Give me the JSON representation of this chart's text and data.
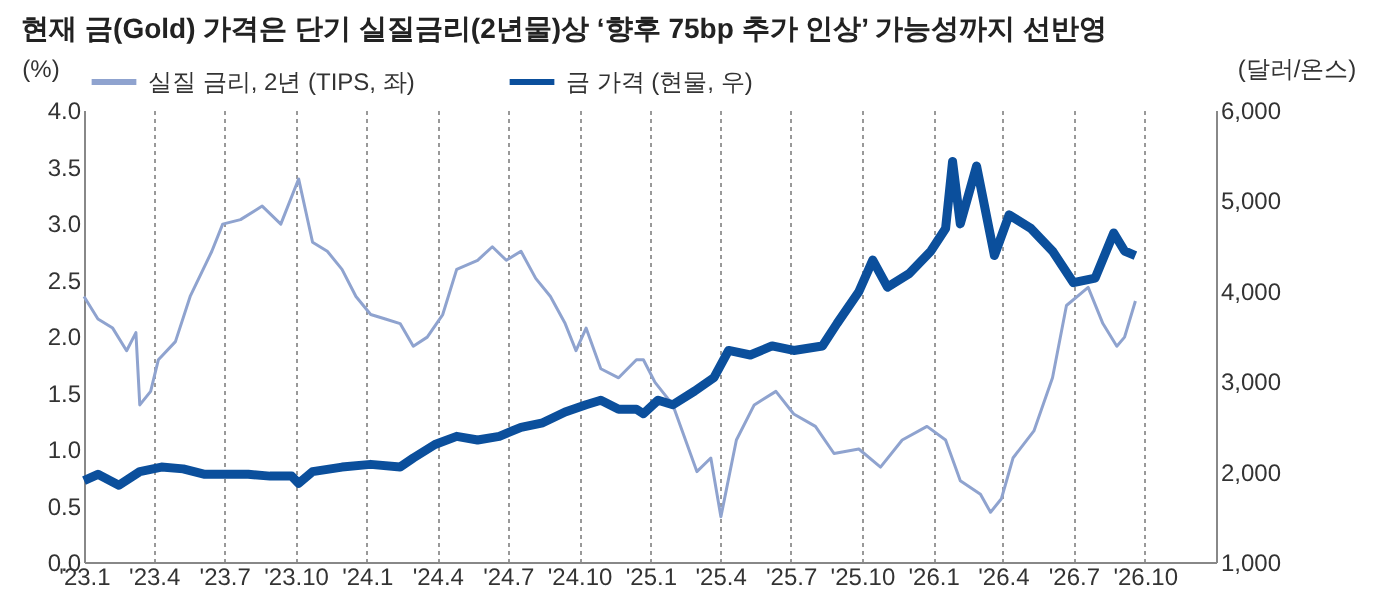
{
  "chart_data": {
    "type": "line",
    "title": "현재 금(Gold) 가격은 단기 실질금리(2년물)상 ‘향후 75bp 추가 인상’ 가능성까지 선반영",
    "ylabel": "(%)",
    "y2label": "(달러/온스)",
    "grid": "x",
    "legend": "top",
    "marker": "none",
    "line_style": "solid",
    "xlim": [
      "2023-01-01",
      "2027-01-01"
    ],
    "xticks": [
      {
        "value": "2023-01-01",
        "label": "'23.1"
      },
      {
        "value": "2023-04-01",
        "label": "'23.4"
      },
      {
        "value": "2023-07-01",
        "label": "'23.7"
      },
      {
        "value": "2023-10-01",
        "label": "'23.10"
      },
      {
        "value": "2024-01-01",
        "label": "'24.1"
      },
      {
        "value": "2024-04-01",
        "label": "'24.4"
      },
      {
        "value": "2024-07-01",
        "label": "'24.7"
      },
      {
        "value": "2024-10-01",
        "label": "'24.10"
      },
      {
        "value": "2025-01-01",
        "label": "'25.1"
      },
      {
        "value": "2025-04-01",
        "label": "'25.4"
      },
      {
        "value": "2025-07-01",
        "label": "'25.7"
      },
      {
        "value": "2025-10-01",
        "label": "'25.10"
      },
      {
        "value": "2026-01-01",
        "label": "'26.1"
      },
      {
        "value": "2026-04-01",
        "label": "'26.4"
      },
      {
        "value": "2026-07-01",
        "label": "'26.7"
      },
      {
        "value": "2026-10-01",
        "label": "'26.10"
      }
    ],
    "ylim": [
      0,
      4
    ],
    "yticks": [
      {
        "value": 0,
        "label": "0.0"
      },
      {
        "value": 0.5,
        "label": "0.5"
      },
      {
        "value": 1,
        "label": "1.0"
      },
      {
        "value": 1.5,
        "label": "1.5"
      },
      {
        "value": 2,
        "label": "2.0"
      },
      {
        "value": 2.5,
        "label": "2.5"
      },
      {
        "value": 3,
        "label": "3.0"
      },
      {
        "value": 3.5,
        "label": "3.5"
      },
      {
        "value": 4,
        "label": "4.0"
      }
    ],
    "y2lim": [
      1000,
      6000
    ],
    "y2ticks": [
      {
        "value": 1000,
        "label": "1,000"
      },
      {
        "value": 2000,
        "label": "2,000"
      },
      {
        "value": 3000,
        "label": "3,000"
      },
      {
        "value": 4000,
        "label": "4,000"
      },
      {
        "value": 5000,
        "label": "5,000"
      },
      {
        "value": 6000,
        "label": "6,000"
      }
    ],
    "series": [
      {
        "name": "실질 금리, 2년 (TIPS, 좌)",
        "color": "#8fa3cf",
        "x": [
          "2023-01-01",
          "2023-01-19",
          "2023-02-07",
          "2023-02-25",
          "2023-03-09",
          "2023-03-14",
          "2023-03-28",
          "2023-04-07",
          "2023-04-29",
          "2023-05-18",
          "2023-06-15",
          "2023-06-29",
          "2023-07-22",
          "2023-08-19",
          "2023-09-12",
          "2023-10-05",
          "2023-10-23",
          "2023-11-11",
          "2023-11-30",
          "2023-12-18",
          "2024-01-06",
          "2024-01-25",
          "2024-02-13",
          "2024-03-01",
          "2024-03-19",
          "2024-04-08",
          "2024-04-26",
          "2024-05-23",
          "2024-06-11",
          "2024-06-29",
          "2024-07-18",
          "2024-08-06",
          "2024-08-25",
          "2024-09-13",
          "2024-09-27",
          "2024-10-10",
          "2024-10-29",
          "2024-11-21",
          "2024-12-14",
          "2024-12-23",
          "2025-01-07",
          "2025-01-30",
          "2025-03-02",
          "2025-03-20",
          "2025-04-02",
          "2025-04-22",
          "2025-05-15",
          "2025-06-12",
          "2025-07-05",
          "2025-08-02",
          "2025-08-26",
          "2025-09-27",
          "2025-10-25",
          "2025-11-22",
          "2025-12-24",
          "2026-01-17",
          "2026-02-05",
          "2026-03-03",
          "2026-03-16",
          "2026-03-30",
          "2026-04-14",
          "2026-05-11",
          "2026-06-04",
          "2026-06-22",
          "2026-07-20",
          "2026-08-08",
          "2026-08-26",
          "2026-09-05",
          "2026-09-19"
        ],
        "values": [
          2.35,
          2.15,
          2.07,
          1.87,
          2.03,
          1.39,
          1.51,
          1.79,
          1.95,
          2.35,
          2.75,
          2.99,
          3.03,
          3.15,
          2.99,
          3.39,
          2.83,
          2.75,
          2.59,
          2.35,
          2.19,
          2.15,
          2.11,
          1.91,
          1.99,
          2.19,
          2.59,
          2.67,
          2.79,
          2.67,
          2.75,
          2.51,
          2.35,
          2.11,
          1.87,
          2.07,
          1.71,
          1.63,
          1.79,
          1.79,
          1.59,
          1.39,
          0.8,
          0.92,
          0.4,
          1.08,
          1.39,
          1.51,
          1.31,
          1.2,
          0.96,
          1.0,
          0.84,
          1.08,
          1.2,
          1.08,
          0.72,
          0.6,
          0.44,
          0.56,
          0.92,
          1.16,
          1.63,
          2.27,
          2.43,
          2.11,
          1.91,
          1.99,
          2.31
        ]
      },
      {
        "name": "금 가격 (현물, 우)",
        "color": "#0b4f9c",
        "axis": "y2",
        "x": [
          "2023-01-01",
          "2023-01-19",
          "2023-02-15",
          "2023-03-14",
          "2023-04-11",
          "2023-05-09",
          "2023-06-06",
          "2023-07-04",
          "2023-08-01",
          "2023-08-29",
          "2023-09-26",
          "2023-10-05",
          "2023-10-23",
          "2023-11-30",
          "2024-01-06",
          "2024-02-13",
          "2024-03-01",
          "2024-03-29",
          "2024-04-26",
          "2024-05-23",
          "2024-06-20",
          "2024-07-18",
          "2024-08-15",
          "2024-09-13",
          "2024-10-10",
          "2024-10-29",
          "2024-11-21",
          "2024-12-14",
          "2024-12-23",
          "2025-01-11",
          "2025-01-30",
          "2025-02-27",
          "2025-03-24",
          "2025-04-12",
          "2025-05-10",
          "2025-06-07",
          "2025-07-05",
          "2025-08-11",
          "2025-08-30",
          "2025-09-27",
          "2025-10-15",
          "2025-11-03",
          "2025-12-01",
          "2025-12-29",
          "2026-01-17",
          "2026-01-26",
          "2026-02-05",
          "2026-02-26",
          "2026-03-21",
          "2026-04-09",
          "2026-05-07",
          "2026-06-04",
          "2026-07-01",
          "2026-07-29",
          "2026-08-22",
          "2026-09-05",
          "2026-09-19"
        ],
        "values": [
          1900,
          1970,
          1850,
          2000,
          2050,
          2030,
          1970,
          1970,
          1970,
          1950,
          1950,
          1870,
          2000,
          2050,
          2080,
          2050,
          2150,
          2300,
          2390,
          2350,
          2390,
          2490,
          2540,
          2660,
          2740,
          2790,
          2690,
          2690,
          2640,
          2790,
          2740,
          2890,
          3040,
          3340,
          3290,
          3390,
          3340,
          3390,
          3640,
          3990,
          4340,
          4040,
          4190,
          4440,
          4690,
          5430,
          4740,
          5380,
          4390,
          4840,
          4690,
          4440,
          4090,
          4140,
          4640,
          4440,
          4390
        ]
      }
    ]
  }
}
